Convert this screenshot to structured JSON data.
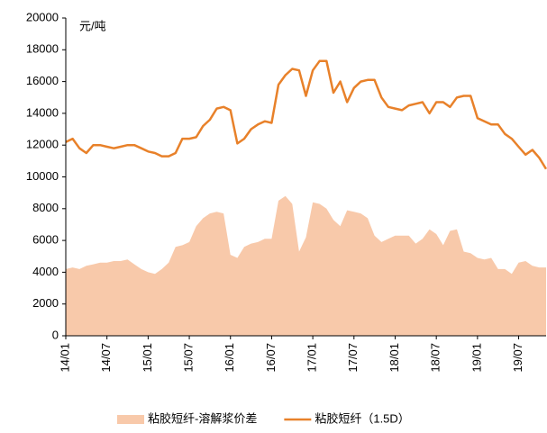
{
  "chart_data": {
    "type": "line-area",
    "y_unit_label": "元/吨",
    "categories": [
      "14/01",
      null,
      null,
      null,
      null,
      null,
      "14/07",
      null,
      null,
      null,
      null,
      null,
      "15/01",
      null,
      null,
      null,
      null,
      null,
      "15/07",
      null,
      null,
      null,
      null,
      null,
      "16/01",
      null,
      null,
      null,
      null,
      null,
      "16/07",
      null,
      null,
      null,
      null,
      null,
      "17/01",
      null,
      null,
      null,
      null,
      null,
      "17/07",
      null,
      null,
      null,
      null,
      null,
      "18/01",
      null,
      null,
      null,
      null,
      null,
      "18/07",
      null,
      null,
      null,
      null,
      null,
      "19/01",
      null,
      null,
      null,
      null,
      null,
      "19/07",
      null,
      null,
      null,
      null
    ],
    "series": [
      {
        "name": "粘胶短纤-溶解浆价差",
        "kind": "area",
        "color": "#f8c9aa",
        "values": [
          4200,
          4300,
          4200,
          4400,
          4500,
          4600,
          4600,
          4700,
          4700,
          4800,
          4500,
          4200,
          4000,
          3900,
          4200,
          4600,
          5600,
          5700,
          5900,
          6900,
          7400,
          7700,
          7800,
          7700,
          5100,
          4900,
          5600,
          5800,
          5900,
          6100,
          6100,
          8500,
          8800,
          8300,
          5300,
          6200,
          8400,
          8300,
          8000,
          7300,
          6900,
          7900,
          7800,
          7700,
          7400,
          6300,
          5900,
          6100,
          6300,
          6300,
          6300,
          5800,
          6100,
          6700,
          6400,
          5700,
          6600,
          6700,
          5300,
          5200,
          4900,
          4800,
          4900,
          4200,
          4200,
          3900,
          4600,
          4700,
          4400,
          4300,
          4300
        ]
      },
      {
        "name": "粘胶短纤（1.5D）",
        "kind": "line",
        "color": "#e8812a",
        "values": [
          12200,
          12400,
          11800,
          11500,
          12000,
          12000,
          11900,
          11800,
          11900,
          12000,
          12000,
          11800,
          11600,
          11500,
          11300,
          11300,
          11500,
          12400,
          12400,
          12500,
          13200,
          13600,
          14300,
          14400,
          14200,
          12100,
          12400,
          13000,
          13300,
          13500,
          13400,
          15800,
          16400,
          16800,
          16700,
          15100,
          16700,
          17300,
          17300,
          15300,
          16000,
          14700,
          15600,
          16000,
          16100,
          16100,
          15000,
          14400,
          14300,
          14200,
          14500,
          14600,
          14700,
          14000,
          14700,
          14700,
          14400,
          15000,
          15100,
          15100,
          13700,
          13500,
          13300,
          13300,
          12700,
          12400,
          11900,
          11400,
          11700,
          11200,
          10500
        ]
      }
    ],
    "ylim": [
      0,
      20000
    ],
    "yticks": [
      0,
      2000,
      4000,
      6000,
      8000,
      10000,
      12000,
      14000,
      16000,
      18000,
      20000
    ],
    "legend": "bottom"
  }
}
